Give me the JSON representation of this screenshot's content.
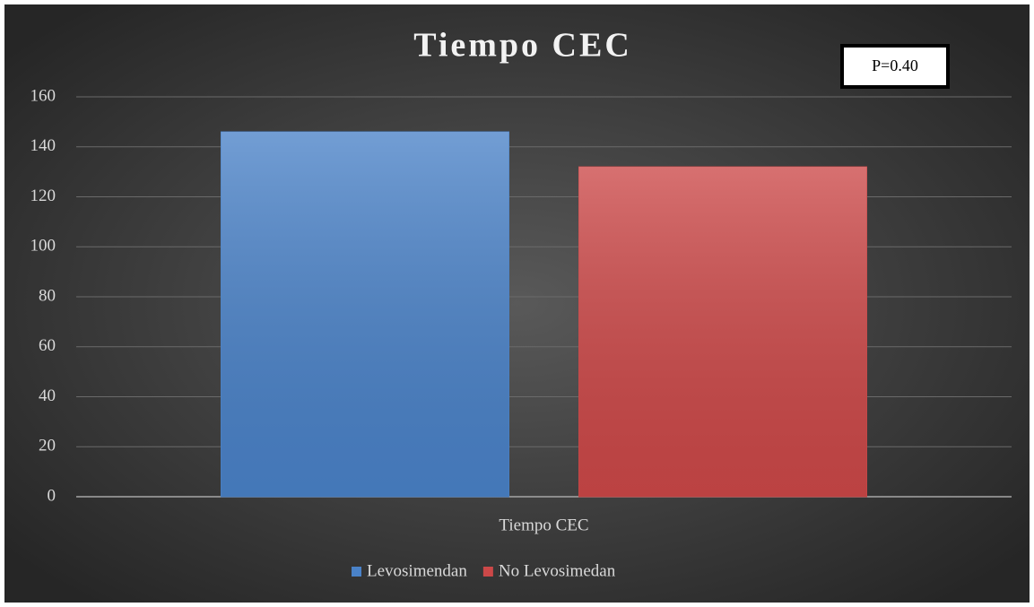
{
  "chart_data": {
    "type": "bar",
    "title": "Tiempo CEC",
    "annotation": "P=0.40",
    "categories": [
      "Tiempo CEC"
    ],
    "series": [
      {
        "name": "Levosimendan",
        "color": "#4a82c8",
        "values": [
          146
        ]
      },
      {
        "name": "No Levosimedan",
        "color": "#cc4848",
        "values": [
          132
        ]
      }
    ],
    "ylim": [
      0,
      160
    ],
    "yticks": [
      0,
      20,
      40,
      60,
      80,
      100,
      120,
      140,
      160
    ],
    "grid": true,
    "legend": "bottom"
  }
}
